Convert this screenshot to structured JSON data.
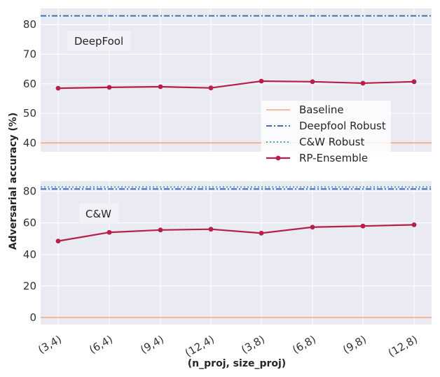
{
  "chart_data": [
    {
      "type": "line",
      "annotation": "DeepFool",
      "categories": [
        "(3,4)",
        "(6,4)",
        "(9,4)",
        "(12,4)",
        "(3,8)",
        "(6,8)",
        "(9,8)",
        "(12,8)"
      ],
      "ylim": [
        37,
        85.5
      ],
      "yticks": [
        40,
        50,
        60,
        70,
        80
      ],
      "series": [
        {
          "name": "RP-Ensemble",
          "values": [
            58.5,
            58.8,
            59.0,
            58.6,
            60.9,
            60.7,
            60.2,
            60.7
          ],
          "color": "#b5204a",
          "style": "solid-marker"
        },
        {
          "name": "Baseline",
          "constant": 40,
          "color": "#f4a582",
          "style": "solid"
        },
        {
          "name": "Deepfool Robust",
          "constant": 83,
          "color": "#3d6fb6",
          "style": "dashdot"
        }
      ]
    },
    {
      "type": "line",
      "annotation": "C&W",
      "categories": [
        "(3,4)",
        "(6,4)",
        "(9,4)",
        "(12,4)",
        "(3,8)",
        "(6,8)",
        "(9,8)",
        "(12,8)"
      ],
      "ylim": [
        -4.5,
        86.5
      ],
      "yticks": [
        0,
        20,
        40,
        60,
        80
      ],
      "series": [
        {
          "name": "RP-Ensemble",
          "values": [
            48.5,
            54.0,
            55.5,
            56.0,
            53.5,
            57.3,
            58.0,
            58.8
          ],
          "color": "#b5204a",
          "style": "solid-marker"
        },
        {
          "name": "Baseline",
          "constant": 0,
          "color": "#f4a582",
          "style": "solid"
        },
        {
          "name": "Deepfool Robust",
          "constant": 81.5,
          "color": "#3d6fb6",
          "style": "dashdot"
        },
        {
          "name": "C&W Robust",
          "constant": 82.8,
          "color": "#4aa3c7",
          "style": "dotted"
        }
      ]
    }
  ],
  "ylabel": "Adversarial accuracy (%)",
  "xlabel": "(n_proj, size_proj)",
  "legend": {
    "location": "lower-right of top panel",
    "entries": [
      "Baseline",
      "Deepfool Robust",
      "C&W Robust",
      "RP-Ensemble"
    ]
  },
  "colors": {
    "plot_background": "#eaeaf2",
    "grid": "#ffffff"
  }
}
